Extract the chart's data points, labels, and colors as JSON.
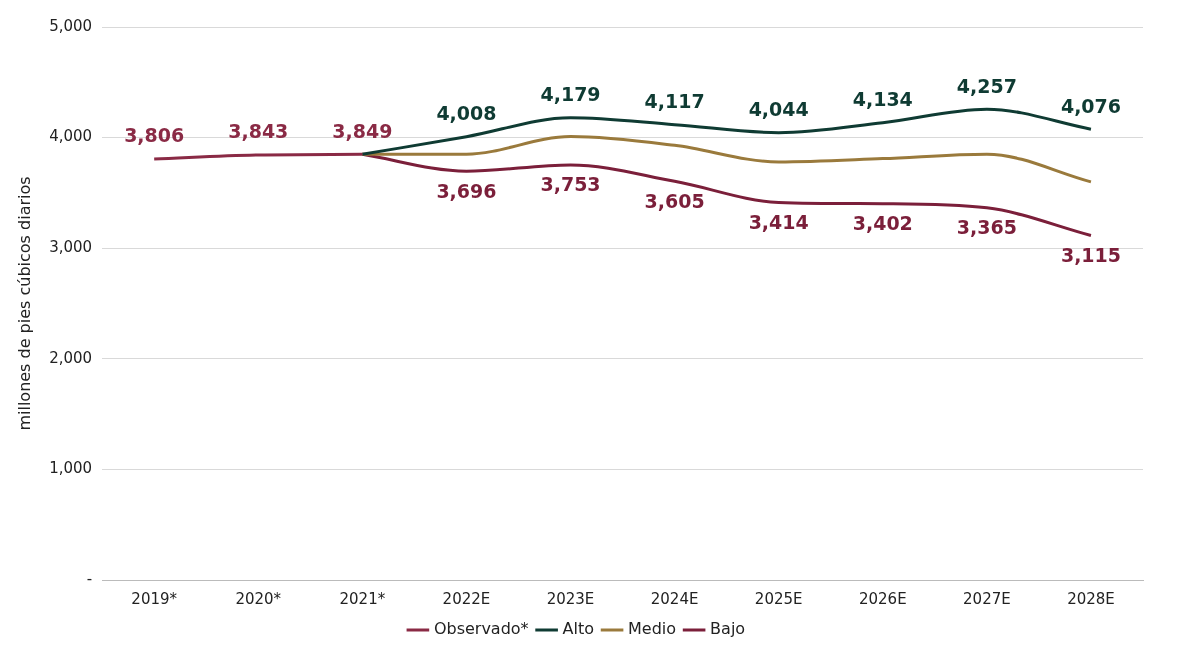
{
  "chart_data": {
    "type": "line",
    "ylabel": "millones de pies cúbicos diarios",
    "categories": [
      "2019*",
      "2020*",
      "2021*",
      "2022E",
      "2023E",
      "2024E",
      "2025E",
      "2026E",
      "2027E",
      "2028E"
    ],
    "series": [
      {
        "name": "Observado*",
        "color": "#8a2a45",
        "values": [
          3806,
          3843,
          3849,
          null,
          null,
          null,
          null,
          null,
          null,
          null
        ],
        "value_labels": [
          "3,806",
          "3,843",
          "3,849",
          null,
          null,
          null,
          null,
          null,
          null,
          null
        ]
      },
      {
        "name": "Alto",
        "color": "#0f3b33",
        "values": [
          null,
          null,
          3849,
          4008,
          4179,
          4117,
          4044,
          4134,
          4257,
          4076
        ],
        "value_labels": [
          null,
          null,
          null,
          "4,008",
          "4,179",
          "4,117",
          "4,044",
          "4,134",
          "4,257",
          "4,076"
        ]
      },
      {
        "name": "Medio",
        "color": "#9a7a3c",
        "values": [
          null,
          null,
          3849,
          3850,
          4010,
          3930,
          3780,
          3810,
          3850,
          3600
        ]
      },
      {
        "name": "Bajo",
        "color": "#7b1f3a",
        "values": [
          null,
          null,
          3849,
          3696,
          3753,
          3605,
          3414,
          3402,
          3365,
          3115
        ],
        "value_labels": [
          null,
          null,
          null,
          "3,696",
          "3,753",
          "3,605",
          "3,414",
          "3,402",
          "3,365",
          "3,115"
        ]
      }
    ],
    "ylim": [
      0,
      5000
    ],
    "yticks": [
      {
        "value": 0,
        "label": "-"
      },
      {
        "value": 1000,
        "label": "1,000"
      },
      {
        "value": 2000,
        "label": "2,000"
      },
      {
        "value": 3000,
        "label": "3,000"
      },
      {
        "value": 4000,
        "label": "4,000"
      },
      {
        "value": 5000,
        "label": "5,000"
      }
    ],
    "grid": "y",
    "legend": "bottom",
    "marker": "none",
    "line_style": "solid"
  }
}
